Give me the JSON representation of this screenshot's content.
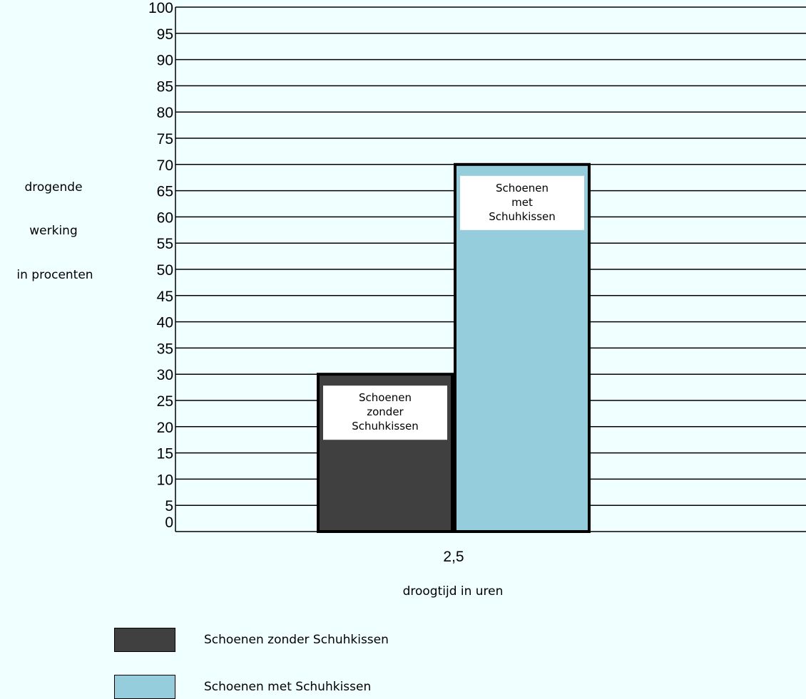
{
  "chart_data": {
    "type": "bar",
    "categories": [
      "2,5"
    ],
    "series": [
      {
        "name": "Schoenen zonder Schuhkissen",
        "label_lines": [
          "Schoenen",
          "zonder",
          "Schuhkissen"
        ],
        "values": [
          30
        ],
        "color": "#404040"
      },
      {
        "name": "Schoenen met Schuhkissen",
        "label_lines": [
          "Schoenen",
          "met",
          "Schuhkissen"
        ],
        "values": [
          70
        ],
        "color": "#96cddd"
      }
    ],
    "xlabel": "droogtijd in uren",
    "ylabel_lines": [
      "drogende",
      "werking",
      "in procenten"
    ],
    "ylim": [
      0,
      100
    ],
    "yticks": [
      0,
      5,
      10,
      15,
      20,
      25,
      30,
      35,
      40,
      45,
      50,
      55,
      60,
      65,
      70,
      75,
      80,
      85,
      90,
      95,
      100
    ],
    "grid": true,
    "legend_position": "bottom",
    "background": "#f0ffff"
  }
}
